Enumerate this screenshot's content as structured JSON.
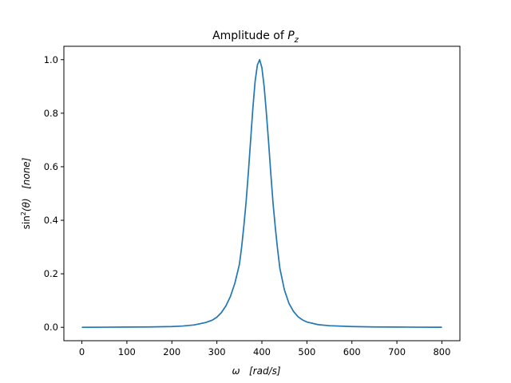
{
  "chart_data": {
    "type": "line",
    "title": {
      "prefix": "Amplitude of ",
      "symbol": "P",
      "sub": "z"
    },
    "xlabel": {
      "symbol": "ω",
      "unit": "[rad/s]"
    },
    "ylabel": {
      "func": "sin",
      "sup": "2",
      "arg": "(θ)",
      "unit": "[none]"
    },
    "xlim": [
      -40,
      840
    ],
    "ylim": [
      -0.05,
      1.05
    ],
    "x_ticks": [
      0,
      100,
      200,
      300,
      400,
      500,
      600,
      700,
      800
    ],
    "x_tick_labels": [
      "0",
      "100",
      "200",
      "300",
      "400",
      "500",
      "600",
      "700",
      "800"
    ],
    "y_ticks": [
      0.0,
      0.2,
      0.4,
      0.6,
      0.8,
      1.0
    ],
    "y_tick_labels": [
      "0.0",
      "0.2",
      "0.4",
      "0.6",
      "0.8",
      "1.0"
    ],
    "grid": false,
    "legend": "none",
    "line_color": "#1f77b4",
    "series": [
      {
        "x": [
          0,
          50,
          100,
          150,
          200,
          225,
          250,
          275,
          290,
          300,
          310,
          320,
          330,
          340,
          350,
          355,
          360,
          365,
          370,
          375,
          380,
          385,
          390,
          395,
          400,
          405,
          410,
          415,
          420,
          425,
          430,
          435,
          440,
          450,
          460,
          470,
          480,
          490,
          500,
          525,
          550,
          600,
          650,
          700,
          750,
          800
        ],
        "y": [
          0.0,
          0.0005,
          0.001,
          0.0015,
          0.003,
          0.005,
          0.009,
          0.018,
          0.027,
          0.038,
          0.055,
          0.08,
          0.115,
          0.165,
          0.235,
          0.3,
          0.38,
          0.47,
          0.58,
          0.7,
          0.82,
          0.92,
          0.98,
          1.0,
          0.97,
          0.9,
          0.8,
          0.69,
          0.57,
          0.46,
          0.37,
          0.29,
          0.22,
          0.14,
          0.09,
          0.06,
          0.04,
          0.028,
          0.02,
          0.01,
          0.006,
          0.003,
          0.0015,
          0.001,
          0.0005,
          0.0002
        ]
      }
    ]
  }
}
